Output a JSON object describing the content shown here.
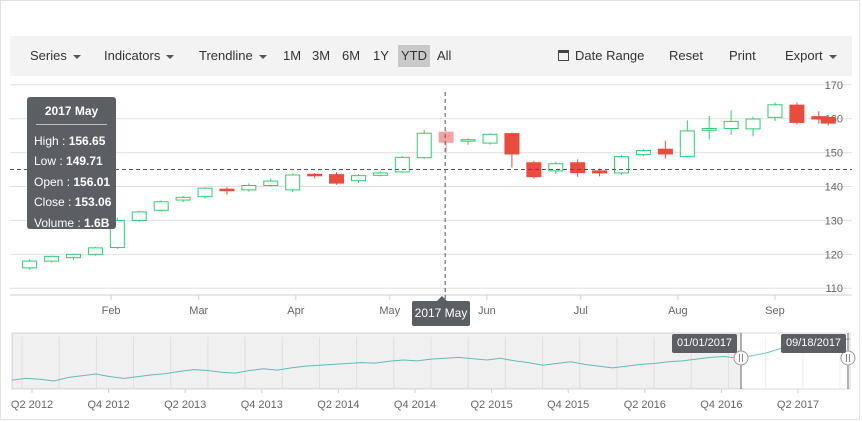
{
  "toolbar": {
    "series_label": "Series",
    "indicators_label": "Indicators",
    "trendline_label": "Trendline",
    "periods": [
      "1M",
      "3M",
      "6M",
      "1Y",
      "YTD",
      "All"
    ],
    "active_period": "YTD",
    "date_range_label": "Date Range",
    "reset_label": "Reset",
    "print_label": "Print",
    "export_label": "Export"
  },
  "tooltip": {
    "title": "2017 May",
    "rows": [
      {
        "label": "High",
        "value": "156.65"
      },
      {
        "label": "Low",
        "value": "149.71"
      },
      {
        "label": "Open",
        "value": "156.01"
      },
      {
        "label": "Close",
        "value": "153.06"
      },
      {
        "label": "Volume",
        "value": "1.6B"
      }
    ]
  },
  "crosshair": {
    "x_label": "2017 May",
    "y_value": 145
  },
  "navigator": {
    "start_label": "01/01/2017",
    "end_label": "09/18/2017",
    "x_labels": [
      "Q2 2012",
      "Q4 2012",
      "Q2 2013",
      "Q4 2013",
      "Q2 2014",
      "Q4 2014",
      "Q2 2015",
      "Q4 2015",
      "Q2 2016",
      "Q4 2016",
      "Q2 2017"
    ]
  },
  "colors": {
    "bull": "#2ecc71",
    "bear": "#e84c3d",
    "highlight_bear": "#f3a3a3",
    "axis": "#666666",
    "tooltip_bg": "#5b5e63",
    "nav_line": "#6cc5c5"
  },
  "chart_data": {
    "type": "candlestick",
    "x_labels": [
      "Feb",
      "Mar",
      "Apr",
      "May",
      "Jun",
      "Jul",
      "Aug",
      "Sep"
    ],
    "y_ticks": [
      110,
      120,
      130,
      140,
      150,
      160,
      170
    ],
    "ylim": [
      108,
      172
    ],
    "candles": [
      {
        "week": "2017-01-06",
        "o": 116.0,
        "h": 118.5,
        "l": 115.5,
        "c": 118.0
      },
      {
        "week": "2017-01-13",
        "o": 118.0,
        "h": 119.6,
        "l": 117.6,
        "c": 119.4
      },
      {
        "week": "2017-01-20",
        "o": 119.0,
        "h": 120.2,
        "l": 118.4,
        "c": 120.0
      },
      {
        "week": "2017-01-27",
        "o": 120.0,
        "h": 122.2,
        "l": 119.6,
        "c": 121.9
      },
      {
        "week": "2017-02-03",
        "o": 122.0,
        "h": 130.8,
        "l": 121.6,
        "c": 130.0
      },
      {
        "week": "2017-02-10",
        "o": 130.0,
        "h": 132.8,
        "l": 129.6,
        "c": 132.5
      },
      {
        "week": "2017-02-17",
        "o": 133.0,
        "h": 135.9,
        "l": 132.6,
        "c": 135.5
      },
      {
        "week": "2017-02-24",
        "o": 136.0,
        "h": 137.2,
        "l": 135.4,
        "c": 136.8
      },
      {
        "week": "2017-03-03",
        "o": 137.0,
        "h": 139.8,
        "l": 136.4,
        "c": 139.5
      },
      {
        "week": "2017-03-10",
        "o": 139.2,
        "h": 139.8,
        "l": 137.6,
        "c": 138.8
      },
      {
        "week": "2017-03-17",
        "o": 139.0,
        "h": 140.9,
        "l": 138.5,
        "c": 140.3
      },
      {
        "week": "2017-03-24",
        "o": 140.3,
        "h": 142.4,
        "l": 140.0,
        "c": 141.6
      },
      {
        "week": "2017-03-31",
        "o": 139.0,
        "h": 143.9,
        "l": 138.4,
        "c": 143.4
      },
      {
        "week": "2017-04-07",
        "o": 143.6,
        "h": 144.0,
        "l": 142.4,
        "c": 143.3
      },
      {
        "week": "2017-04-14",
        "o": 143.5,
        "h": 144.2,
        "l": 140.5,
        "c": 141.0
      },
      {
        "week": "2017-04-21",
        "o": 141.7,
        "h": 143.6,
        "l": 141.0,
        "c": 143.2
      },
      {
        "week": "2017-04-28",
        "o": 143.3,
        "h": 144.4,
        "l": 143.0,
        "c": 144.0
      },
      {
        "week": "2017-05-05",
        "o": 144.3,
        "h": 149.0,
        "l": 144.0,
        "c": 148.6
      },
      {
        "week": "2017-05-12",
        "o": 148.5,
        "h": 156.6,
        "l": 148.2,
        "c": 155.7
      },
      {
        "week": "2017-05-19",
        "o": 156.01,
        "h": 156.65,
        "l": 149.71,
        "c": 153.06
      },
      {
        "week": "2017-05-26",
        "o": 153.4,
        "h": 154.2,
        "l": 152.3,
        "c": 153.8
      },
      {
        "week": "2017-06-02",
        "o": 152.8,
        "h": 155.7,
        "l": 152.4,
        "c": 155.4
      },
      {
        "week": "2017-06-09",
        "o": 155.6,
        "h": 155.9,
        "l": 145.6,
        "c": 149.6
      },
      {
        "week": "2017-06-16",
        "o": 147.0,
        "h": 147.6,
        "l": 142.3,
        "c": 142.9
      },
      {
        "week": "2017-06-23",
        "o": 144.6,
        "h": 147.3,
        "l": 143.6,
        "c": 146.7
      },
      {
        "week": "2017-06-30",
        "o": 147.0,
        "h": 148.0,
        "l": 142.9,
        "c": 144.1
      },
      {
        "week": "2017-07-07",
        "o": 144.6,
        "h": 145.3,
        "l": 143.0,
        "c": 144.0
      },
      {
        "week": "2017-07-14",
        "o": 144.0,
        "h": 149.3,
        "l": 143.5,
        "c": 148.8
      },
      {
        "week": "2017-07-21",
        "o": 149.4,
        "h": 151.0,
        "l": 149.0,
        "c": 150.6
      },
      {
        "week": "2017-07-28",
        "o": 151.0,
        "h": 153.5,
        "l": 148.2,
        "c": 149.6
      },
      {
        "week": "2017-08-04",
        "o": 148.8,
        "h": 159.5,
        "l": 148.6,
        "c": 156.4
      },
      {
        "week": "2017-08-11",
        "o": 156.6,
        "h": 160.8,
        "l": 153.8,
        "c": 157.1
      },
      {
        "week": "2017-08-18",
        "o": 157.1,
        "h": 162.5,
        "l": 155.3,
        "c": 159.2
      },
      {
        "week": "2017-08-25",
        "o": 157.0,
        "h": 160.6,
        "l": 154.8,
        "c": 159.9
      },
      {
        "week": "2017-09-01",
        "o": 160.4,
        "h": 164.8,
        "l": 159.3,
        "c": 164.1
      },
      {
        "week": "2017-09-08",
        "o": 164.0,
        "h": 164.8,
        "l": 158.3,
        "c": 158.9
      },
      {
        "week": "2017-09-15",
        "o": 160.6,
        "h": 162.2,
        "l": 158.5,
        "c": 159.9
      },
      {
        "week": "2017-09-18",
        "o": 160.4,
        "h": 160.9,
        "l": 158.0,
        "c": 158.7
      }
    ],
    "navigator_series": [
      78,
      82,
      80,
      76,
      84,
      88,
      92,
      86,
      82,
      86,
      90,
      93,
      98,
      102,
      100,
      96,
      94,
      100,
      104,
      101,
      106,
      110,
      112,
      114,
      116,
      118,
      117,
      121,
      124,
      122,
      126,
      128,
      130,
      127,
      124,
      128,
      122,
      118,
      112,
      116,
      120,
      114,
      110,
      106,
      110,
      114,
      116,
      120,
      122,
      126,
      130,
      132,
      128,
      134,
      140,
      150,
      158,
      162,
      166,
      170,
      172
    ]
  }
}
